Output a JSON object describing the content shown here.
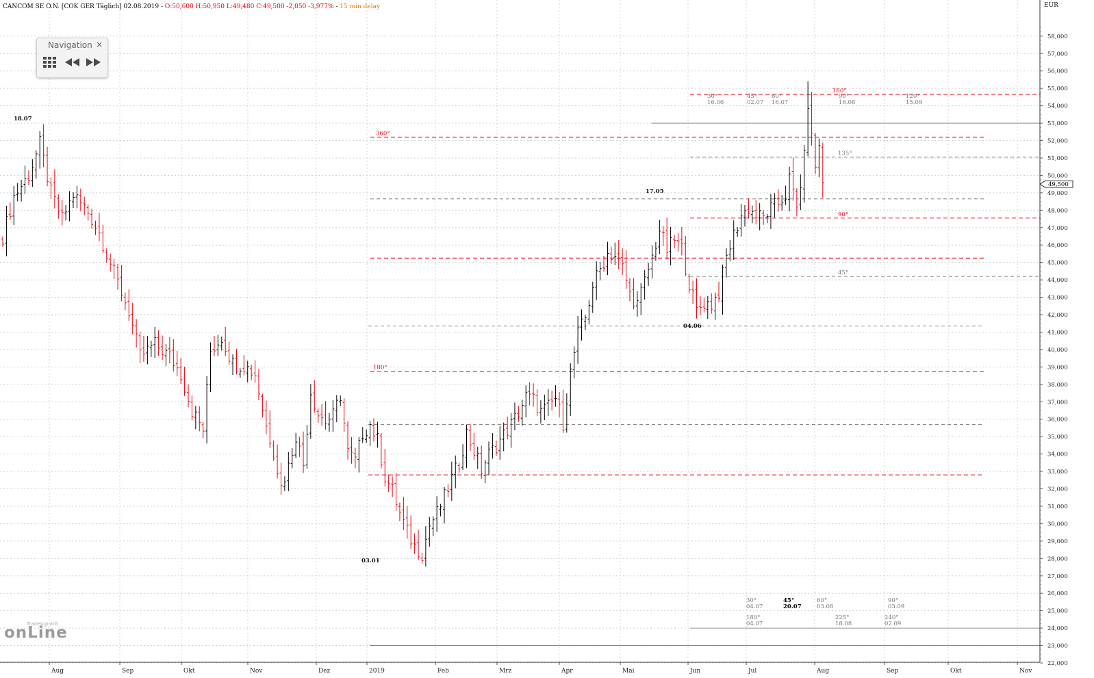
{
  "header": {
    "instrument": "CANCOM SE O.N. [COK GER Täglich] 02.08.2019",
    "ohlc_change": "O:50,600 H:50,950 L:49,480 C:49,500 -2,050 -3,977%",
    "delay": "15 min delay"
  },
  "navigation": {
    "title": "Navigation",
    "close": "×",
    "grid_icon": "grid-icon",
    "back_icon": "rewind-icon",
    "forward_icon": "fast-forward-icon"
  },
  "logo": {
    "text": "onLine",
    "small": "Tradesignal®"
  },
  "colors": {
    "up_bar": "#000000",
    "down_bar": "#e8000b",
    "red_line": "#e8000b",
    "grey_line": "#777777",
    "grid": "#cccccc"
  },
  "chart_data": {
    "type": "ohlc",
    "currency": "EUR",
    "ylim": [
      22000,
      58500
    ],
    "y_ticks": [
      "22,000",
      "23,000",
      "24,000",
      "25,000",
      "26,000",
      "27,000",
      "28,000",
      "29,000",
      "30,000",
      "31,000",
      "32,000",
      "33,000",
      "34,000",
      "35,000",
      "36,000",
      "37,000",
      "38,000",
      "39,000",
      "40,000",
      "41,000",
      "42,000",
      "43,000",
      "44,000",
      "45,000",
      "46,000",
      "47,000",
      "48,000",
      "49,000",
      "50,000",
      "51,000",
      "52,000",
      "53,000",
      "54,000",
      "55,000",
      "56,000",
      "57,000",
      "58,000"
    ],
    "x_labels": [
      "Aug",
      "Sep",
      "Okt",
      "Nov",
      "Dez",
      "2019",
      "Feb",
      "Mrz",
      "Apr",
      "Mai",
      "Jun",
      "Jul",
      "Aug",
      "Sep",
      "Okt",
      "Nov"
    ],
    "last_price": "49,500",
    "price_path": [
      [
        0,
        46500
      ],
      [
        3,
        48800
      ],
      [
        7,
        50000
      ],
      [
        10,
        51800
      ],
      [
        13,
        49000
      ],
      [
        16,
        47500
      ],
      [
        19,
        48900
      ],
      [
        23,
        47900
      ],
      [
        26,
        46700
      ],
      [
        30,
        44400
      ],
      [
        34,
        42200
      ],
      [
        37,
        39600
      ],
      [
        41,
        40300
      ],
      [
        45,
        39600
      ],
      [
        48,
        38600
      ],
      [
        51,
        36500
      ],
      [
        54,
        35400
      ],
      [
        56,
        39900
      ],
      [
        59,
        40700
      ],
      [
        62,
        39200
      ],
      [
        65,
        39100
      ],
      [
        68,
        38600
      ],
      [
        71,
        35600
      ],
      [
        73,
        34200
      ],
      [
        75,
        32100
      ],
      [
        77,
        33300
      ],
      [
        79,
        35100
      ],
      [
        81,
        33400
      ],
      [
        83,
        37600
      ],
      [
        85,
        36300
      ],
      [
        87,
        35900
      ],
      [
        89,
        36200
      ],
      [
        91,
        37400
      ],
      [
        93,
        34100
      ],
      [
        95,
        33600
      ],
      [
        97,
        35200
      ],
      [
        99,
        35700
      ],
      [
        101,
        34800
      ],
      [
        103,
        32700
      ],
      [
        105,
        31900
      ],
      [
        107,
        30600
      ],
      [
        109,
        29500
      ],
      [
        111,
        28700
      ],
      [
        113,
        28300
      ],
      [
        115,
        29900
      ],
      [
        117,
        30600
      ],
      [
        119,
        31500
      ],
      [
        121,
        32600
      ],
      [
        123,
        33500
      ],
      [
        125,
        35200
      ],
      [
        127,
        34200
      ],
      [
        129,
        33100
      ],
      [
        131,
        34000
      ],
      [
        133,
        34500
      ],
      [
        135,
        35100
      ],
      [
        137,
        35700
      ],
      [
        139,
        36400
      ],
      [
        141,
        37300
      ],
      [
        143,
        37100
      ],
      [
        145,
        36400
      ],
      [
        147,
        36700
      ],
      [
        149,
        37200
      ],
      [
        151,
        35800
      ],
      [
        153,
        38700
      ],
      [
        155,
        40900
      ],
      [
        157,
        41800
      ],
      [
        159,
        43700
      ],
      [
        161,
        44600
      ],
      [
        163,
        45500
      ],
      [
        165,
        45400
      ],
      [
        167,
        44700
      ],
      [
        169,
        43200
      ],
      [
        171,
        42600
      ],
      [
        173,
        43900
      ],
      [
        175,
        45300
      ],
      [
        177,
        46900
      ],
      [
        179,
        45700
      ],
      [
        181,
        46300
      ],
      [
        183,
        45800
      ],
      [
        185,
        43800
      ],
      [
        187,
        42200
      ],
      [
        189,
        42700
      ],
      [
        191,
        42600
      ],
      [
        193,
        43300
      ],
      [
        195,
        45300
      ],
      [
        197,
        46600
      ],
      [
        199,
        47700
      ],
      [
        201,
        48100
      ],
      [
        203,
        47700
      ],
      [
        205,
        47600
      ],
      [
        207,
        48100
      ],
      [
        209,
        48400
      ],
      [
        211,
        48900
      ],
      [
        212,
        49800
      ],
      [
        214,
        48100
      ],
      [
        216,
        51000
      ],
      [
        217,
        54200
      ],
      [
        218,
        52100
      ],
      [
        219,
        50600
      ],
      [
        220,
        51600
      ],
      [
        221,
        49600
      ]
    ],
    "labels": [
      {
        "date": "18.07",
        "price": 52000
      },
      {
        "date": "03.01",
        "price": 27500
      },
      {
        "date": "17.05",
        "price": 47700
      },
      {
        "date": "04.06",
        "price": 41000
      }
    ],
    "horizontal_lines": [
      {
        "label": "180°",
        "price": 54650,
        "color": "red"
      },
      {
        "label": "360°",
        "price": 52200,
        "color": "red"
      },
      {
        "label": "",
        "price": 53000,
        "color": "grey-solid"
      },
      {
        "label": "135°",
        "price": 51050,
        "color": "grey"
      },
      {
        "label": "",
        "price": 48650,
        "color": "grey"
      },
      {
        "label": "90°",
        "price": 47550,
        "color": "red"
      },
      {
        "label": "",
        "price": 45250,
        "color": "red"
      },
      {
        "label": "45°",
        "price": 44200,
        "color": "grey"
      },
      {
        "label": "",
        "price": 41350,
        "color": "grey"
      },
      {
        "label": "180°",
        "price": 38750,
        "color": "red"
      },
      {
        "label": "",
        "price": 35700,
        "color": "grey"
      },
      {
        "label": "",
        "price": 32800,
        "color": "red"
      },
      {
        "label": "",
        "price": 24000,
        "color": "grey-solid"
      },
      {
        "label": "",
        "price": 23000,
        "color": "grey-solid"
      }
    ],
    "cycle_markers_top": [
      {
        "angle": "30°",
        "date": "16.06"
      },
      {
        "angle": "45°",
        "date": "02.07"
      },
      {
        "angle": "60°",
        "date": "16.07"
      },
      {
        "angle": "90°",
        "date": "16.08"
      },
      {
        "angle": "120°",
        "date": "15.09"
      }
    ],
    "cycle_markers_bottom": [
      {
        "angle": "30°",
        "date": "04.07"
      },
      {
        "angle": "45°",
        "date": "20.07"
      },
      {
        "angle": "60°",
        "date": "03.08"
      },
      {
        "angle": "90°",
        "date": "03.09"
      },
      {
        "angle": "180°",
        "date": "04.07"
      },
      {
        "angle": "225°",
        "date": "18.08"
      },
      {
        "angle": "240°",
        "date": "02.09"
      }
    ]
  }
}
